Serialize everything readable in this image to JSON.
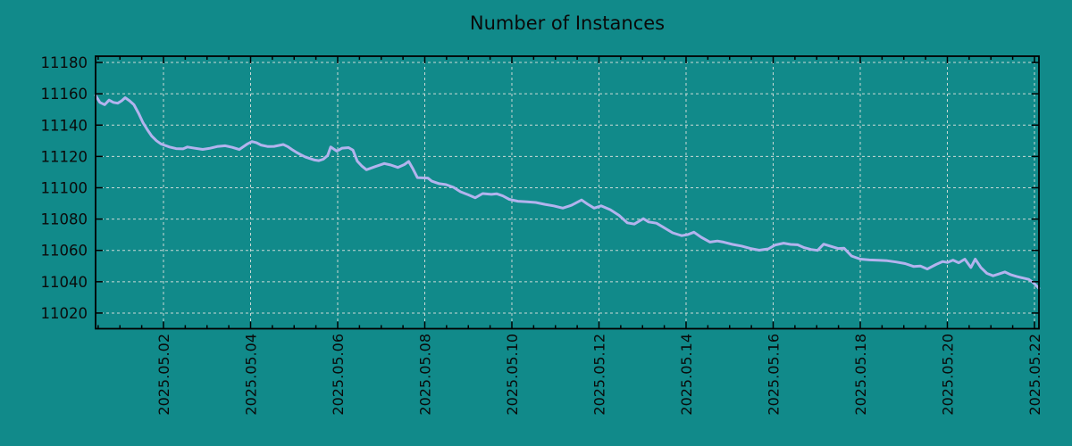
{
  "title": "Number of Instances",
  "colors": {
    "background": "#118a8a",
    "line": "#b3b3ee",
    "grid": "#cbd9d6",
    "axis": "#000000",
    "text": "#0a0a0a"
  },
  "chart_data": {
    "type": "line",
    "title": "Number of Instances",
    "xlabel": "",
    "ylabel": "",
    "legend": false,
    "grid": true,
    "x_unit": "day of May 2025 (0 = 2025.04.30)",
    "x_axis": {
      "tick_labels": [
        "2025.05.02",
        "2025.05.04",
        "2025.05.06",
        "2025.05.08",
        "2025.05.10",
        "2025.05.12",
        "2025.05.14",
        "2025.05.16",
        "2025.05.18",
        "2025.05.20",
        "2025.05.22"
      ],
      "tick_positions_day": [
        2,
        4,
        6,
        8,
        10,
        12,
        14,
        16,
        18,
        20,
        22
      ],
      "minor_tick_step_day": 0.5,
      "range_day": [
        0.441,
        22.103
      ]
    },
    "y_axis": {
      "ticks": [
        11020,
        11040,
        11060,
        11080,
        11100,
        11120,
        11140,
        11160,
        11180
      ],
      "range": [
        11010,
        11184
      ]
    },
    "series": [
      {
        "name": "instances",
        "points": [
          [
            0.44,
            11159
          ],
          [
            0.54,
            11154.5
          ],
          [
            0.65,
            11153
          ],
          [
            0.75,
            11156
          ],
          [
            0.85,
            11154.5
          ],
          [
            0.95,
            11154
          ],
          [
            1.04,
            11155.5
          ],
          [
            1.12,
            11157.5
          ],
          [
            1.22,
            11155.5
          ],
          [
            1.32,
            11153
          ],
          [
            1.43,
            11147.5
          ],
          [
            1.53,
            11141.5
          ],
          [
            1.63,
            11137
          ],
          [
            1.73,
            11133
          ],
          [
            1.84,
            11130
          ],
          [
            1.94,
            11128
          ],
          [
            2.04,
            11127
          ],
          [
            2.14,
            11126
          ],
          [
            2.29,
            11125
          ],
          [
            2.45,
            11124.8
          ],
          [
            2.55,
            11126
          ],
          [
            2.72,
            11125.2
          ],
          [
            2.9,
            11124.5
          ],
          [
            3.07,
            11125.2
          ],
          [
            3.23,
            11126.3
          ],
          [
            3.42,
            11126.8
          ],
          [
            3.58,
            11125.8
          ],
          [
            3.74,
            11124.4
          ],
          [
            3.93,
            11128
          ],
          [
            4.03,
            11129.5
          ],
          [
            4.13,
            11128.8
          ],
          [
            4.24,
            11127.3
          ],
          [
            4.4,
            11126.3
          ],
          [
            4.54,
            11126.4
          ],
          [
            4.75,
            11127.6
          ],
          [
            4.85,
            11126.3
          ],
          [
            4.95,
            11124.4
          ],
          [
            5.06,
            11122.5
          ],
          [
            5.16,
            11121
          ],
          [
            5.26,
            11119.6
          ],
          [
            5.36,
            11118.7
          ],
          [
            5.47,
            11117.7
          ],
          [
            5.57,
            11117.3
          ],
          [
            5.67,
            11118.2
          ],
          [
            5.77,
            11120.6
          ],
          [
            5.84,
            11126
          ],
          [
            5.98,
            11123.4
          ],
          [
            6.1,
            11125.3
          ],
          [
            6.25,
            11125.6
          ],
          [
            6.35,
            11124
          ],
          [
            6.45,
            11117
          ],
          [
            6.55,
            11114
          ],
          [
            6.66,
            11111.5
          ],
          [
            6.86,
            11113.5
          ],
          [
            7.07,
            11115.5
          ],
          [
            7.22,
            11114.5
          ],
          [
            7.38,
            11113
          ],
          [
            7.53,
            11114.8
          ],
          [
            7.63,
            11116.8
          ],
          [
            7.73,
            11112
          ],
          [
            7.83,
            11106.5
          ],
          [
            8.07,
            11106.2
          ],
          [
            8.16,
            11104.2
          ],
          [
            8.33,
            11102.6
          ],
          [
            8.49,
            11102
          ],
          [
            8.66,
            11100.3
          ],
          [
            8.82,
            11097.4
          ],
          [
            9.0,
            11095.5
          ],
          [
            9.16,
            11093.6
          ],
          [
            9.33,
            11096.3
          ],
          [
            9.53,
            11095.8
          ],
          [
            9.65,
            11096.2
          ],
          [
            9.79,
            11094.8
          ],
          [
            9.94,
            11092.6
          ],
          [
            10.14,
            11091.4
          ],
          [
            10.35,
            11091
          ],
          [
            10.55,
            11090.6
          ],
          [
            10.76,
            11089.4
          ],
          [
            10.96,
            11088.4
          ],
          [
            11.17,
            11087
          ],
          [
            11.37,
            11088.8
          ],
          [
            11.6,
            11092.2
          ],
          [
            11.74,
            11089.5
          ],
          [
            11.89,
            11087
          ],
          [
            12.05,
            11088.4
          ],
          [
            12.26,
            11086
          ],
          [
            12.46,
            11082.4
          ],
          [
            12.65,
            11077.6
          ],
          [
            12.81,
            11076.8
          ],
          [
            13.02,
            11080.3
          ],
          [
            13.14,
            11078.2
          ],
          [
            13.32,
            11077.4
          ],
          [
            13.49,
            11074.6
          ],
          [
            13.69,
            11071.2
          ],
          [
            13.9,
            11069.4
          ],
          [
            14.04,
            11070.1
          ],
          [
            14.18,
            11071.6
          ],
          [
            14.35,
            11068.4
          ],
          [
            14.55,
            11065.3
          ],
          [
            14.72,
            11066
          ],
          [
            14.86,
            11065.3
          ],
          [
            15.07,
            11063.8
          ],
          [
            15.27,
            11062.8
          ],
          [
            15.48,
            11061.2
          ],
          [
            15.68,
            11060.1
          ],
          [
            15.89,
            11061
          ],
          [
            16.05,
            11063.5
          ],
          [
            16.24,
            11064.6
          ],
          [
            16.4,
            11063.8
          ],
          [
            16.56,
            11063.6
          ],
          [
            16.71,
            11061.8
          ],
          [
            16.87,
            11060.6
          ],
          [
            17.02,
            11060
          ],
          [
            17.16,
            11064
          ],
          [
            17.32,
            11062.6
          ],
          [
            17.49,
            11061.2
          ],
          [
            17.63,
            11061.4
          ],
          [
            17.8,
            11056.4
          ],
          [
            18.0,
            11054.4
          ],
          [
            18.21,
            11053.9
          ],
          [
            18.41,
            11053.7
          ],
          [
            18.62,
            11053.4
          ],
          [
            18.82,
            11052.6
          ],
          [
            19.03,
            11051.6
          ],
          [
            19.23,
            11049.7
          ],
          [
            19.38,
            11050
          ],
          [
            19.54,
            11048.1
          ],
          [
            19.74,
            11051
          ],
          [
            19.89,
            11052.9
          ],
          [
            20.0,
            11052.3
          ],
          [
            20.13,
            11053.8
          ],
          [
            20.26,
            11052.1
          ],
          [
            20.4,
            11054.4
          ],
          [
            20.54,
            11049.1
          ],
          [
            20.64,
            11054.4
          ],
          [
            20.77,
            11049.1
          ],
          [
            20.91,
            11045.3
          ],
          [
            21.05,
            11043.8
          ],
          [
            21.18,
            11044.9
          ],
          [
            21.32,
            11046.2
          ],
          [
            21.46,
            11044.4
          ],
          [
            21.59,
            11043.4
          ],
          [
            21.73,
            11042.4
          ],
          [
            21.87,
            11041.5
          ],
          [
            21.97,
            11039.5
          ],
          [
            22.07,
            11036.7
          ],
          [
            22.1,
            11035.8
          ]
        ]
      }
    ]
  }
}
